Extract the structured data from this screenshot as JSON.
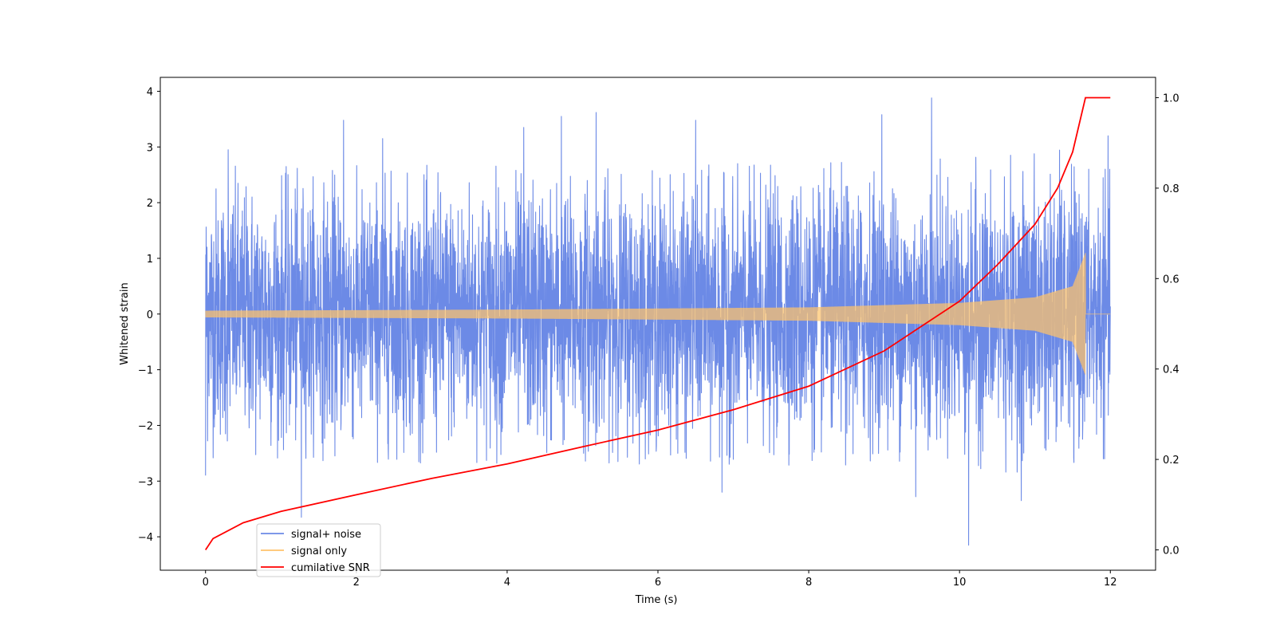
{
  "chart_data": {
    "type": "line",
    "xlabel": "Time (s)",
    "ylabel": "Whitened strain",
    "y2label": "",
    "xlim": [
      -0.6,
      12.6
    ],
    "ylim": [
      -4.6,
      4.25
    ],
    "y2lim": [
      -0.045,
      1.045
    ],
    "x_ticks": [
      0,
      2,
      4,
      6,
      8,
      10,
      12
    ],
    "x_tick_labels": [
      "0",
      "2",
      "4",
      "6",
      "8",
      "10",
      "12"
    ],
    "y_ticks": [
      -4,
      -3,
      -2,
      -1,
      0,
      1,
      2,
      3,
      4
    ],
    "y_tick_labels": [
      "−4",
      "−3",
      "−2",
      "−1",
      "0",
      "1",
      "2",
      "3",
      "4"
    ],
    "y2_ticks": [
      0.0,
      0.2,
      0.4,
      0.6,
      0.8,
      1.0
    ],
    "y2_tick_labels": [
      "0.0",
      "0.2",
      "0.4",
      "0.6",
      "0.8",
      "1.0"
    ],
    "grid": false,
    "legend_position": "lower-left",
    "series": [
      {
        "name": "signal+ noise",
        "color": "#6c8ae6",
        "axis": "left",
        "x_range": [
          0,
          12
        ],
        "typical_band": [
          -1.5,
          1.5
        ],
        "notable_peaks": [
          {
            "x": 0.02,
            "y": 1.2
          },
          {
            "x": 0.3,
            "y": 2.95
          },
          {
            "x": 1.83,
            "y": 3.48
          },
          {
            "x": 2.35,
            "y": 3.15
          },
          {
            "x": 4.22,
            "y": 3.35
          },
          {
            "x": 4.72,
            "y": 3.55
          },
          {
            "x": 5.18,
            "y": 3.62
          },
          {
            "x": 6.5,
            "y": 3.48
          },
          {
            "x": 8.97,
            "y": 3.58
          },
          {
            "x": 9.63,
            "y": 3.88
          },
          {
            "x": 11.97,
            "y": 3.2
          }
        ],
        "notable_troughs": [
          {
            "x": 0.0,
            "y": -2.9
          },
          {
            "x": 1.27,
            "y": -3.65
          },
          {
            "x": 6.85,
            "y": -3.2
          },
          {
            "x": 9.42,
            "y": -3.28
          },
          {
            "x": 10.12,
            "y": -4.15
          },
          {
            "x": 10.82,
            "y": -3.35
          }
        ]
      },
      {
        "name": "signal only",
        "color": "#ffc36b",
        "axis": "left",
        "x_range": [
          0,
          12
        ],
        "envelope": [
          {
            "t": 0,
            "amp": 0.06
          },
          {
            "t": 4,
            "amp": 0.08
          },
          {
            "t": 8,
            "amp": 0.12
          },
          {
            "t": 10,
            "amp": 0.2
          },
          {
            "t": 11,
            "amp": 0.3
          },
          {
            "t": 11.5,
            "amp": 0.5
          },
          {
            "t": 11.67,
            "amp": 1.1
          }
        ],
        "merger_time": 11.67,
        "post_merger_value": 0
      },
      {
        "name": "cumilative SNR",
        "color": "#ff0000",
        "axis": "right",
        "x": [
          0,
          0.1,
          0.5,
          1,
          2,
          3,
          4,
          5,
          6,
          7,
          8,
          9,
          10,
          10.5,
          11,
          11.3,
          11.5,
          11.67,
          12
        ],
        "values": [
          0.0,
          0.025,
          0.06,
          0.085,
          0.122,
          0.158,
          0.19,
          0.228,
          0.265,
          0.31,
          0.362,
          0.44,
          0.55,
          0.63,
          0.72,
          0.8,
          0.88,
          1.0,
          1.0
        ]
      }
    ]
  }
}
